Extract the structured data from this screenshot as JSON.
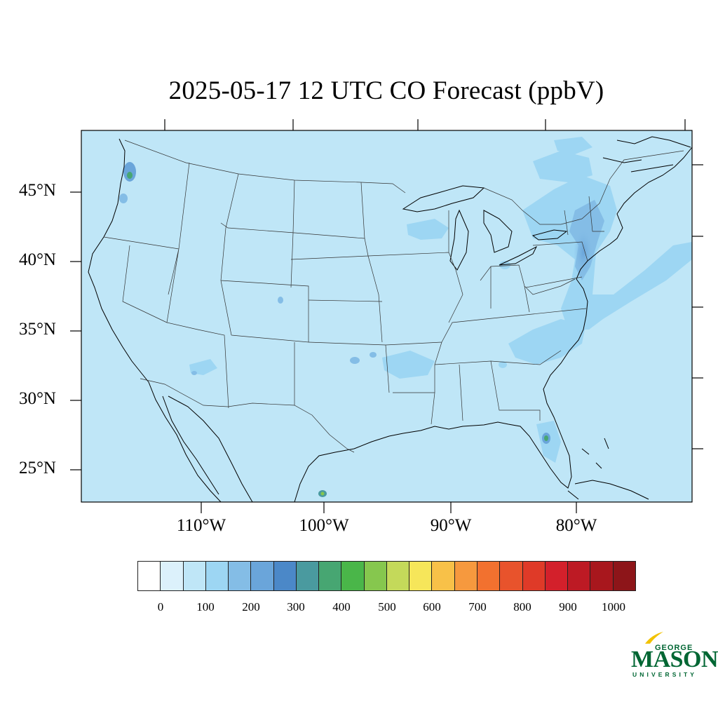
{
  "title": "2025-05-17 12 UTC CO Forecast (ppbV)",
  "map": {
    "projection": "lambert-conformal",
    "region": "CONUS",
    "lat_labels": [
      "45°N",
      "40°N",
      "35°N",
      "30°N",
      "25°N"
    ],
    "lon_labels": [
      "110°W",
      "100°W",
      "90°W",
      "80°W"
    ],
    "background_level": "50-100 ppbV",
    "background_color": "#bfe6f7",
    "hotspots": [
      {
        "place": "Seattle area",
        "level": "400-450"
      },
      {
        "place": "Portland area",
        "level": "200-250"
      },
      {
        "place": "Northeast corridor (NYC–Boston)",
        "level": "200-300"
      },
      {
        "place": "Central Florida",
        "level": "400-450"
      },
      {
        "place": "South Texas border",
        "level": "400-450"
      },
      {
        "place": "Oklahoma / Dallas",
        "level": "200-250"
      },
      {
        "place": "Denver",
        "level": "150-200"
      }
    ]
  },
  "colorbar": {
    "colors": [
      "#ffffff",
      "#dcf1fb",
      "#bfe6f7",
      "#9dd6f3",
      "#84bde6",
      "#6aa5da",
      "#4b88c8",
      "#4a9a9f",
      "#47a672",
      "#4ab649",
      "#86c74e",
      "#c4d95a",
      "#f6e65a",
      "#f8c148",
      "#f6993e",
      "#f2712f",
      "#e8532c",
      "#df3a28",
      "#d3202b",
      "#bd1a24",
      "#a8171d",
      "#8d1519"
    ],
    "labels": [
      "0",
      "100",
      "200",
      "300",
      "400",
      "500",
      "600",
      "700",
      "800",
      "900",
      "1000"
    ]
  },
  "logo": {
    "line1": "GEORGE",
    "line2": "MASON",
    "line3": "UNIVERSITY",
    "color": "#006633",
    "accent": "#f2c200"
  }
}
